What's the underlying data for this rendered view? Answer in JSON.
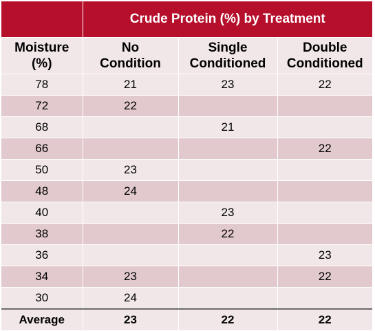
{
  "table": {
    "group_header": "Crude Protein (%) by Treatment",
    "columns": [
      [
        "Moisture",
        "(%)"
      ],
      [
        "No",
        "Condition"
      ],
      [
        "Single",
        "Conditioned"
      ],
      [
        "Double",
        "Conditioned"
      ]
    ],
    "rows": [
      [
        "78",
        "21",
        "23",
        "22"
      ],
      [
        "72",
        "22",
        "",
        ""
      ],
      [
        "68",
        "",
        "21",
        ""
      ],
      [
        "66",
        "",
        "",
        "22"
      ],
      [
        "50",
        "23",
        "",
        ""
      ],
      [
        "48",
        "24",
        "",
        ""
      ],
      [
        "40",
        "",
        "23",
        ""
      ],
      [
        "38",
        "",
        "22",
        ""
      ],
      [
        "36",
        "",
        "",
        "23"
      ],
      [
        "34",
        "23",
        "",
        "22"
      ],
      [
        "30",
        "24",
        "",
        ""
      ]
    ],
    "average": [
      "Average",
      "23",
      "22",
      "22"
    ]
  },
  "colors": {
    "header_red": "#b50f2c",
    "row_light": "#f1e7e9",
    "row_dark": "#e2c9cd"
  }
}
